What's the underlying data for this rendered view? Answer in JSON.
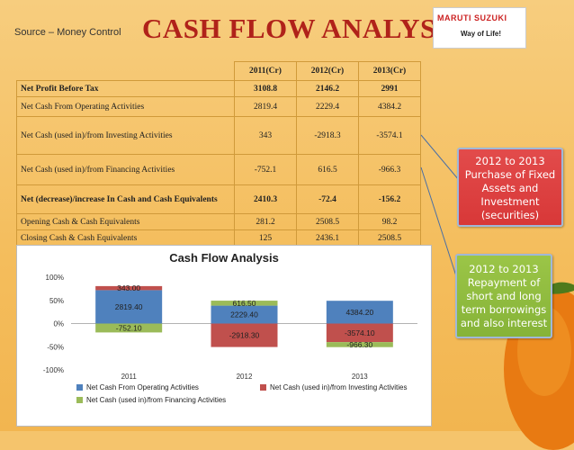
{
  "header": {
    "source": "Source – Money Control",
    "title": "CASH FLOW ANALYSIS",
    "logo_brand": "MARUTI SUZUKI",
    "logo_tagline": "Way of Life!"
  },
  "table": {
    "columns": [
      "2011(Cr)",
      "2012(Cr)",
      "2013(Cr)"
    ],
    "rows": [
      {
        "label": "Net Profit Before Tax",
        "values": [
          "3108.8",
          "2146.2",
          "2991"
        ],
        "bold": true
      },
      {
        "label": "Net Cash From Operating Activities",
        "values": [
          "2819.4",
          "2229.4",
          "4384.2"
        ]
      },
      {
        "label": "Net Cash (used in)/from Investing Activities",
        "values": [
          "343",
          "-2918.3",
          "-3574.1"
        ]
      },
      {
        "label": "Net Cash (used in)/from Financing Activities",
        "values": [
          "-752.1",
          "616.5",
          "-966.3"
        ]
      },
      {
        "label": "Net (decrease)/increase In Cash and Cash Equivalents",
        "values": [
          "2410.3",
          "-72.4",
          "-156.2"
        ],
        "bold": true
      },
      {
        "label": "Opening Cash & Cash Equivalents",
        "values": [
          "281.2",
          "2508.5",
          "98.2"
        ]
      },
      {
        "label": "Closing Cash & Cash Equivalents",
        "values": [
          "125",
          "2436.1",
          "2508.5"
        ]
      }
    ]
  },
  "callouts": {
    "investing": "2012 to 2013 Purchase of Fixed Assets and Investment (securities)",
    "financing": "2012 to 2013 Repayment of short and long term borrowings and also interest"
  },
  "chart_data": {
    "type": "bar",
    "stacked": "percent",
    "title": "Cash Flow Analysis",
    "categories": [
      "2011",
      "2012",
      "2013"
    ],
    "y_ticks": [
      "100%",
      "50%",
      "0%",
      "-50%",
      "-100%"
    ],
    "series": [
      {
        "name": "Net Cash From Operating Activities",
        "color": "#4f81bd",
        "values": [
          2819.4,
          2229.4,
          4384.2
        ],
        "labels": [
          "2819.40",
          "2229.40",
          "4384.20"
        ]
      },
      {
        "name": "Net Cash (used in)/from Investing Activities",
        "color": "#c0504d",
        "values": [
          343.0,
          -2918.3,
          -3574.1
        ],
        "labels": [
          "343.00",
          "-2918.30",
          "-3574.10"
        ]
      },
      {
        "name": "Net Cash (used in)/from Financing Activities",
        "color": "#9bbb59",
        "values": [
          -752.1,
          616.5,
          -966.3
        ],
        "labels": [
          "-752.10",
          "616.50",
          "-966.30"
        ]
      }
    ]
  }
}
